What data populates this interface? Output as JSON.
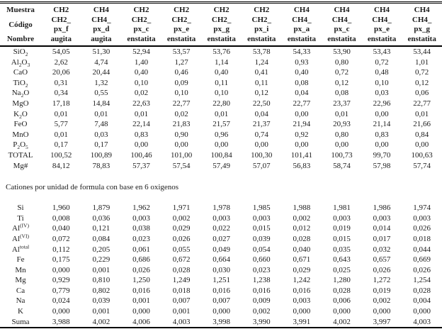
{
  "colors": {
    "text": "#1b1b1b",
    "rule": "#000000",
    "background": "#ffffff"
  },
  "table": {
    "header": {
      "row_labels": [
        "Muestra",
        "Código",
        "Nombre"
      ],
      "columns": [
        {
          "muestra": "CH2",
          "codigo": [
            "CH2_",
            "px_f"
          ],
          "nombre": "augita"
        },
        {
          "muestra": "CH4",
          "codigo": [
            "CH4_",
            "px_d"
          ],
          "nombre": "augita"
        },
        {
          "muestra": "CH2",
          "codigo": [
            "CH2_",
            "px_c"
          ],
          "nombre": "enstatita"
        },
        {
          "muestra": "CH2",
          "codigo": [
            "CH2_",
            "px_e"
          ],
          "nombre": "enstatita"
        },
        {
          "muestra": "CH2",
          "codigo": [
            "CH2_",
            "px_g"
          ],
          "nombre": "enstatita"
        },
        {
          "muestra": "CH2",
          "codigo": [
            "CH2_",
            "px_i"
          ],
          "nombre": "enstatita"
        },
        {
          "muestra": "CH4",
          "codigo": [
            "CH4_",
            "px_a"
          ],
          "nombre": "enstatita"
        },
        {
          "muestra": "CH4",
          "codigo": [
            "CH4_",
            "px_c"
          ],
          "nombre": "enstatita"
        },
        {
          "muestra": "CH4",
          "codigo": [
            "CH4_",
            "px_e"
          ],
          "nombre": "enstatita"
        },
        {
          "muestra": "CH4",
          "codigo": [
            "CH4_",
            "px_g"
          ],
          "nombre": "enstatita"
        }
      ]
    },
    "oxide_rows": [
      {
        "label": [
          [
            "t",
            "SiO"
          ],
          [
            "sub",
            "2"
          ]
        ],
        "values": [
          "54,05",
          "51,30",
          "52,94",
          "53,57",
          "53,76",
          "53,78",
          "54,33",
          "53,90",
          "53,43",
          "53,44"
        ]
      },
      {
        "label": [
          [
            "t",
            "Al"
          ],
          [
            "sub",
            "2"
          ],
          [
            "t",
            "O"
          ],
          [
            "sub",
            "3"
          ]
        ],
        "values": [
          "2,62",
          "4,74",
          "1,40",
          "1,27",
          "1,14",
          "1,24",
          "0,93",
          "0,80",
          "0,72",
          "1,01"
        ]
      },
      {
        "label": [
          [
            "t",
            "CaO"
          ]
        ],
        "values": [
          "20,06",
          "20,44",
          "0,40",
          "0,46",
          "0,40",
          "0,41",
          "0,40",
          "0,72",
          "0,48",
          "0,72"
        ]
      },
      {
        "label": [
          [
            "t",
            "TiO"
          ],
          [
            "sub",
            "2"
          ]
        ],
        "values": [
          "0,31",
          "1,32",
          "0,10",
          "0,09",
          "0,11",
          "0,11",
          "0,08",
          "0,12",
          "0,10",
          "0,12"
        ]
      },
      {
        "label": [
          [
            "t",
            "Na"
          ],
          [
            "sub",
            "2"
          ],
          [
            "t",
            "O"
          ]
        ],
        "values": [
          "0,34",
          "0,55",
          "0,02",
          "0,10",
          "0,10",
          "0,12",
          "0,04",
          "0,08",
          "0,03",
          "0,06"
        ]
      },
      {
        "label": [
          [
            "t",
            "MgO"
          ]
        ],
        "values": [
          "17,18",
          "14,84",
          "22,63",
          "22,77",
          "22,80",
          "22,50",
          "22,77",
          "23,37",
          "22,96",
          "22,77"
        ]
      },
      {
        "label": [
          [
            "t",
            "K"
          ],
          [
            "sub",
            "2"
          ],
          [
            "t",
            "O"
          ]
        ],
        "values": [
          "0,01",
          "0,01",
          "0,01",
          "0,02",
          "0,01",
          "0,04",
          "0,00",
          "0,01",
          "0,00",
          "0,01"
        ]
      },
      {
        "label": [
          [
            "t",
            "FeO"
          ]
        ],
        "values": [
          "5,77",
          "7,48",
          "22,14",
          "21,83",
          "21,57",
          "21,37",
          "21,94",
          "20,93",
          "21,14",
          "21,66"
        ]
      },
      {
        "label": [
          [
            "t",
            "MnO"
          ]
        ],
        "values": [
          "0,01",
          "0,03",
          "0,83",
          "0,90",
          "0,96",
          "0,74",
          "0,92",
          "0,80",
          "0,83",
          "0,84"
        ]
      },
      {
        "label": [
          [
            "t",
            "P"
          ],
          [
            "sub",
            "2"
          ],
          [
            "t",
            "O"
          ],
          [
            "sub",
            "5"
          ]
        ],
        "values": [
          "0,17",
          "0,17",
          "0,00",
          "0,00",
          "0,00",
          "0,00",
          "0,00",
          "0,00",
          "0,00",
          "0,00"
        ]
      },
      {
        "label": [
          [
            "t",
            "TOTAL"
          ]
        ],
        "values": [
          "100,52",
          "100,89",
          "100,46",
          "101,00",
          "100,84",
          "100,30",
          "101,41",
          "100,73",
          "99,70",
          "100,63"
        ]
      },
      {
        "label": [
          [
            "t",
            "Mg#"
          ]
        ],
        "values": [
          "84,12",
          "78,83",
          "57,37",
          "57,54",
          "57,49",
          "57,07",
          "56,83",
          "58,74",
          "57,98",
          "57,74"
        ]
      }
    ],
    "section_note": "Cationes por unidad de formula con base en 6 oxigenos",
    "cation_rows": [
      {
        "label": [
          [
            "t",
            "Si"
          ]
        ],
        "values": [
          "1,960",
          "1,879",
          "1,962",
          "1,971",
          "1,978",
          "1,985",
          "1,988",
          "1,981",
          "1,986",
          "1,974"
        ]
      },
      {
        "label": [
          [
            "t",
            "Ti"
          ]
        ],
        "values": [
          "0,008",
          "0,036",
          "0,003",
          "0,002",
          "0,003",
          "0,003",
          "0,002",
          "0,003",
          "0,003",
          "0,003"
        ]
      },
      {
        "label": [
          [
            "t",
            "Al"
          ],
          [
            "sup",
            "(IV)"
          ]
        ],
        "values": [
          "0,040",
          "0,121",
          "0,038",
          "0,029",
          "0,022",
          "0,015",
          "0,012",
          "0,019",
          "0,014",
          "0,026"
        ]
      },
      {
        "label": [
          [
            "t",
            "Al"
          ],
          [
            "sup",
            "(VI)"
          ]
        ],
        "values": [
          "0,072",
          "0,084",
          "0,023",
          "0,026",
          "0,027",
          "0,039",
          "0,028",
          "0,015",
          "0,017",
          "0,018"
        ]
      },
      {
        "label": [
          [
            "t",
            "Al"
          ],
          [
            "sup",
            "total"
          ]
        ],
        "values": [
          "0,112",
          "0,205",
          "0,061",
          "0,055",
          "0,049",
          "0,054",
          "0,040",
          "0,035",
          "0,032",
          "0,044"
        ]
      },
      {
        "label": [
          [
            "t",
            "Fe"
          ]
        ],
        "values": [
          "0,175",
          "0,229",
          "0,686",
          "0,672",
          "0,664",
          "0,660",
          "0,671",
          "0,643",
          "0,657",
          "0,669"
        ]
      },
      {
        "label": [
          [
            "t",
            "Mn"
          ]
        ],
        "values": [
          "0,000",
          "0,001",
          "0,026",
          "0,028",
          "0,030",
          "0,023",
          "0,029",
          "0,025",
          "0,026",
          "0,026"
        ]
      },
      {
        "label": [
          [
            "t",
            "Mg"
          ]
        ],
        "values": [
          "0,929",
          "0,810",
          "1,250",
          "1,249",
          "1,251",
          "1,238",
          "1,242",
          "1,280",
          "1,272",
          "1,254"
        ]
      },
      {
        "label": [
          [
            "t",
            "Ca"
          ]
        ],
        "values": [
          "0,779",
          "0,802",
          "0,016",
          "0,018",
          "0,016",
          "0,016",
          "0,016",
          "0,028",
          "0,019",
          "0,028"
        ]
      },
      {
        "label": [
          [
            "t",
            "Na"
          ]
        ],
        "values": [
          "0,024",
          "0,039",
          "0,001",
          "0,007",
          "0,007",
          "0,009",
          "0,003",
          "0,006",
          "0,002",
          "0,004"
        ]
      },
      {
        "label": [
          [
            "t",
            "K"
          ]
        ],
        "values": [
          "0,000",
          "0,001",
          "0,000",
          "0,001",
          "0,000",
          "0,002",
          "0,000",
          "0,000",
          "0,000",
          "0,000"
        ]
      },
      {
        "label": [
          [
            "t",
            "Suma"
          ]
        ],
        "values": [
          "3,988",
          "4,002",
          "4,006",
          "4,003",
          "3,998",
          "3,990",
          "3,991",
          "4,002",
          "3,997",
          "4,003"
        ]
      }
    ]
  }
}
